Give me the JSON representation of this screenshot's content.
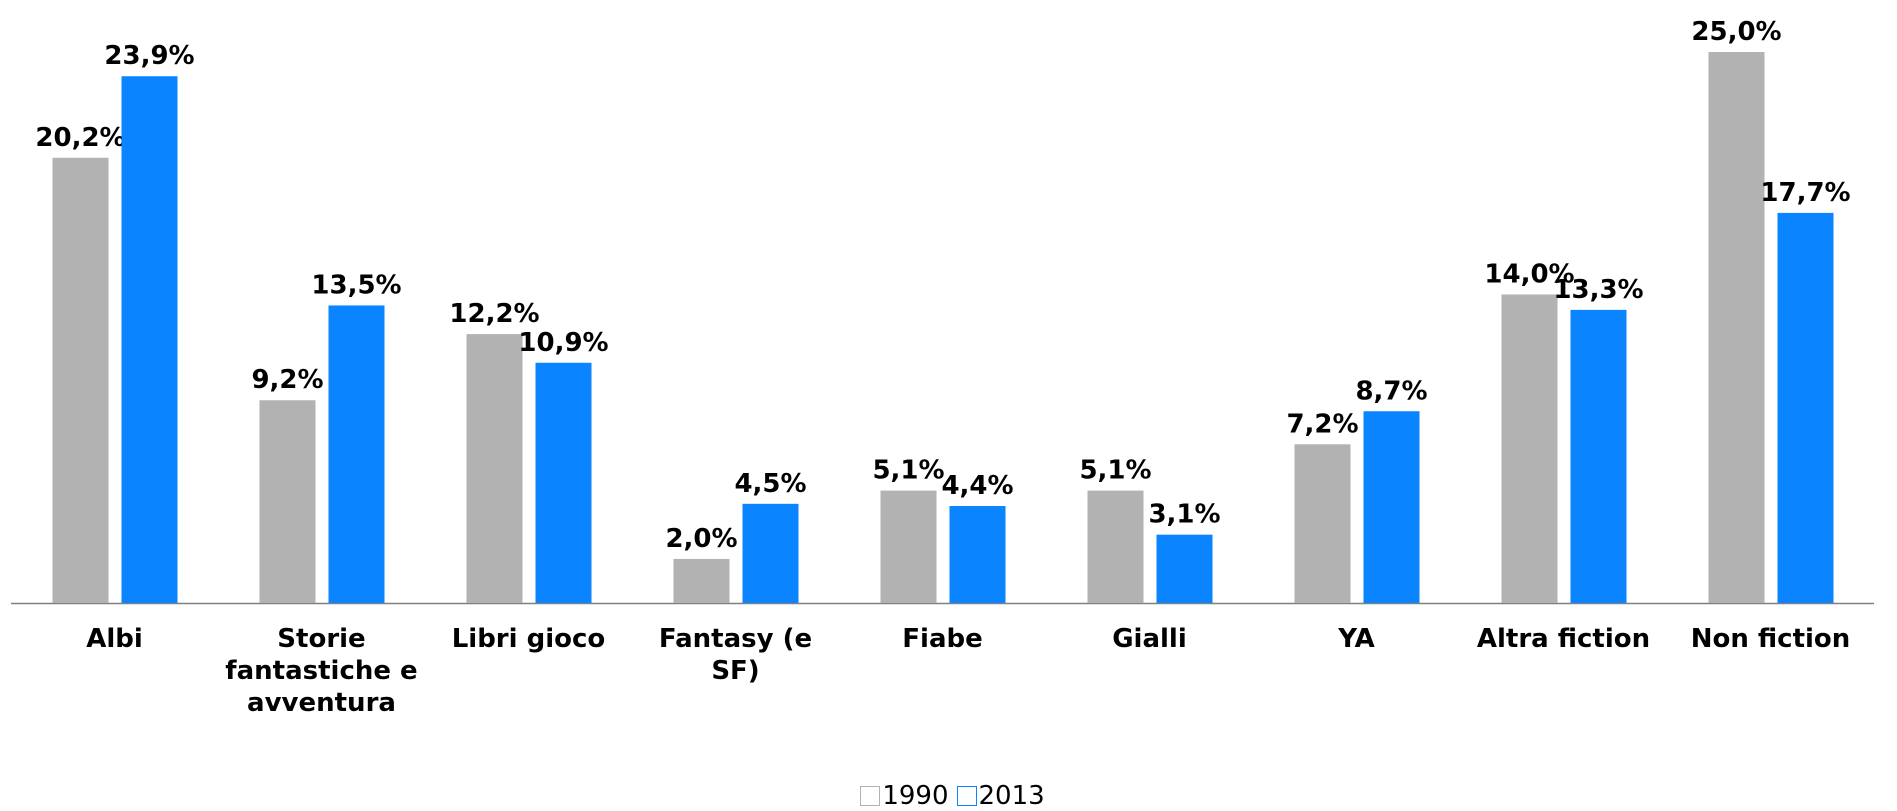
{
  "chart_data": {
    "type": "bar",
    "categories": [
      "Albi",
      "Storie fantastiche e avventura",
      "Libri gioco",
      "Fantasy (e SF)",
      "Fiabe",
      "Gialli",
      "YA",
      "Altra fiction",
      "Non fiction"
    ],
    "series": [
      {
        "name": "1990",
        "color": "#b2b2b2",
        "values": [
          20.2,
          9.2,
          12.2,
          2.0,
          5.1,
          5.1,
          7.2,
          14.0,
          25.0
        ],
        "value_labels": [
          "20,2%",
          "9,2%",
          "12,2%",
          "2,0%",
          "5,1%",
          "5,1%",
          "7,2%",
          "14,0%",
          "25,0%"
        ]
      },
      {
        "name": "2013",
        "color": "#0a84ff",
        "values": [
          23.9,
          13.5,
          10.9,
          4.5,
          4.4,
          3.1,
          8.7,
          13.3,
          17.7
        ],
        "value_labels": [
          "23,9%",
          "13,5%",
          "10,9%",
          "4,5%",
          "4,4%",
          "3,1%",
          "8,7%",
          "13,3%",
          "17,7%"
        ]
      }
    ],
    "legend": "bottom"
  }
}
